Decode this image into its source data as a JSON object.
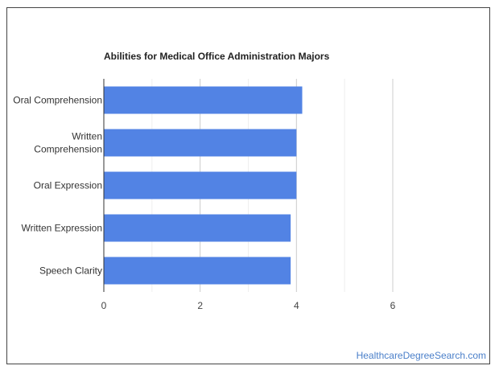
{
  "chart_data": {
    "type": "bar",
    "orientation": "horizontal",
    "title": "Abilities for Medical Office Administration Majors",
    "categories": [
      [
        "Oral Comprehension"
      ],
      [
        "Written",
        "Comprehension"
      ],
      [
        "Oral Expression"
      ],
      [
        "Written Expression"
      ],
      [
        "Speech Clarity"
      ]
    ],
    "values": [
      4.12,
      4.0,
      4.0,
      3.88,
      3.88
    ],
    "xlabel": "",
    "ylabel": "",
    "xlim": [
      0,
      6
    ],
    "xticks": [
      0,
      2,
      4,
      6
    ],
    "grid": true,
    "bar_color": "#5283e4"
  },
  "footer": {
    "source": "HealthcareDegreeSearch.com"
  }
}
